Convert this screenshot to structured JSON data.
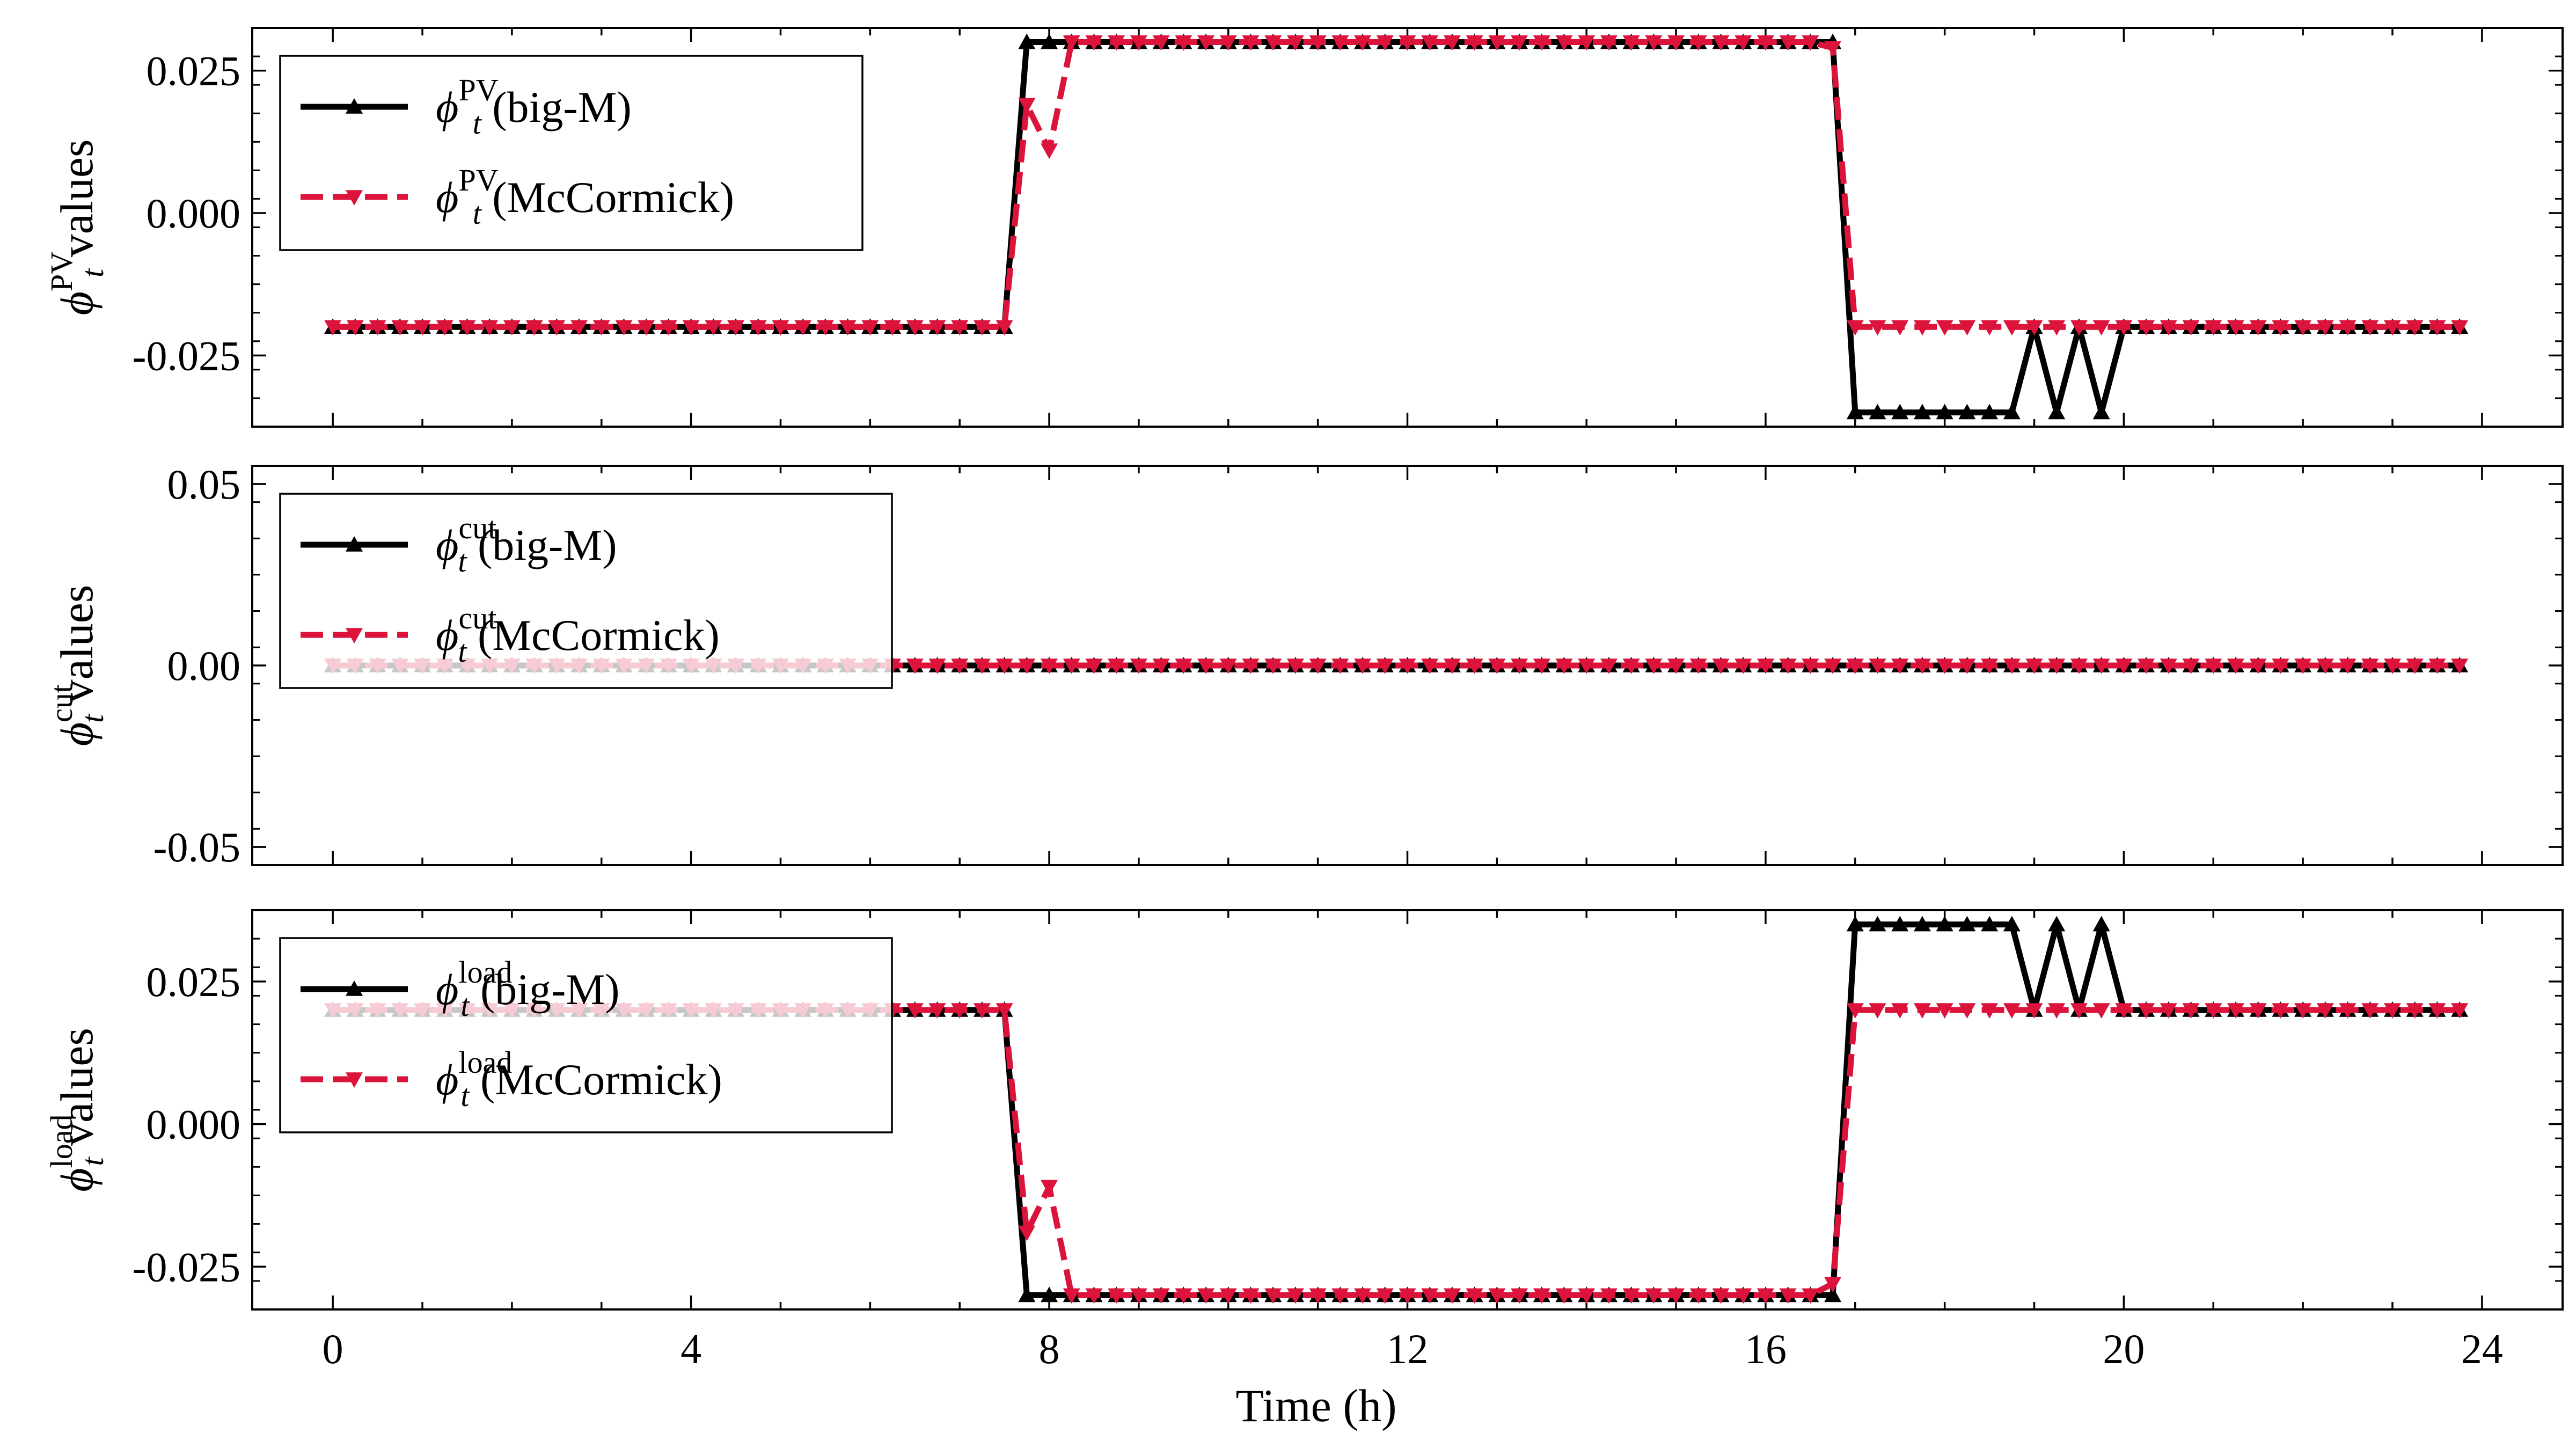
{
  "chart_data": [
    {
      "type": "line",
      "ylabel": {
        "symbol": "ϕ",
        "subscript": "t",
        "superscript": "PV",
        "suffix": "values"
      },
      "yticks": [
        0.025,
        0.0,
        -0.025
      ],
      "ytick_labels": [
        "0.025",
        "0.000",
        "-0.025"
      ],
      "ylim": [
        -0.0375,
        0.0325
      ],
      "xlim": [
        -0.9,
        24.9
      ],
      "grid": false,
      "legend_position": "top-left",
      "series": [
        {
          "name": "(big-M)",
          "label_symbol": "ϕ",
          "label_subscript": "t",
          "label_superscript": "PV",
          "color": "#000000",
          "linestyle": "solid",
          "marker": "triangle-up",
          "segments": [
            {
              "x_start": 0,
              "x_end": 7.5,
              "value": -0.02
            },
            {
              "x_start": 7.75,
              "x_end": 16.75,
              "value": 0.03
            },
            {
              "x_start": 17,
              "x_end": 18.75,
              "value": -0.035
            },
            {
              "x": [
                19,
                19.25,
                19.5,
                19.75
              ],
              "values": [
                -0.02,
                -0.035,
                -0.02,
                -0.035
              ]
            },
            {
              "x_start": 20,
              "x_end": 23.75,
              "value": -0.02
            }
          ]
        },
        {
          "name": "(McCormick)",
          "label_symbol": "ϕ",
          "label_subscript": "t",
          "label_superscript": "PV",
          "color": "#dc143c",
          "linestyle": "dashed",
          "marker": "triangle-down",
          "segments": [
            {
              "x_start": 0,
              "x_end": 7.5,
              "value": -0.02
            },
            {
              "x": [
                7.75,
                8
              ],
              "values": [
                0.019,
                0.011
              ]
            },
            {
              "x_start": 8.25,
              "x_end": 16.5,
              "value": 0.03
            },
            {
              "x": [
                16.75
              ],
              "values": [
                0.029
              ]
            },
            {
              "x_start": 17,
              "x_end": 23.75,
              "value": -0.02
            }
          ]
        }
      ]
    },
    {
      "type": "line",
      "ylabel": {
        "symbol": "ϕ",
        "subscript": "t",
        "superscript": "cut",
        "suffix": "values"
      },
      "yticks": [
        0.05,
        0.0,
        -0.05
      ],
      "ytick_labels": [
        "0.05",
        "0.00",
        "-0.05"
      ],
      "ylim": [
        -0.055,
        0.055
      ],
      "xlim": [
        -0.9,
        24.9
      ],
      "grid": false,
      "legend_position": "top-left",
      "series": [
        {
          "name": "(big-M)",
          "label_symbol": "ϕ",
          "label_subscript": "t",
          "label_superscript": "cut",
          "color": "#000000",
          "linestyle": "solid",
          "marker": "triangle-up",
          "segments": [
            {
              "x_start": 0,
              "x_end": 23.75,
              "value": 0.0
            }
          ]
        },
        {
          "name": "(McCormick)",
          "label_symbol": "ϕ",
          "label_subscript": "t",
          "label_superscript": "cut",
          "color": "#dc143c",
          "linestyle": "dashed",
          "marker": "triangle-down",
          "segments": [
            {
              "x_start": 0,
              "x_end": 23.75,
              "value": 0.0
            }
          ]
        }
      ]
    },
    {
      "type": "line",
      "ylabel": {
        "symbol": "ϕ",
        "subscript": "t",
        "superscript": "load",
        "suffix": "values"
      },
      "yticks": [
        0.025,
        0.0,
        -0.025
      ],
      "ytick_labels": [
        "0.025",
        "0.000",
        "-0.025"
      ],
      "ylim": [
        -0.0325,
        0.0375
      ],
      "xlim": [
        -0.9,
        24.9
      ],
      "xlabel": "Time (h)",
      "xticks": [
        0,
        4,
        8,
        12,
        16,
        20,
        24
      ],
      "xtick_labels": [
        "0",
        "4",
        "8",
        "12",
        "16",
        "20",
        "24"
      ],
      "grid": false,
      "legend_position": "top-left",
      "series": [
        {
          "name": "(big-M)",
          "label_symbol": "ϕ",
          "label_subscript": "t",
          "label_superscript": "load",
          "color": "#000000",
          "linestyle": "solid",
          "marker": "triangle-up",
          "segments": [
            {
              "x_start": 0,
              "x_end": 7.5,
              "value": 0.02
            },
            {
              "x_start": 7.75,
              "x_end": 16.75,
              "value": -0.03
            },
            {
              "x_start": 17,
              "x_end": 18.75,
              "value": 0.035
            },
            {
              "x": [
                19,
                19.25,
                19.5,
                19.75
              ],
              "values": [
                0.02,
                0.035,
                0.02,
                0.035
              ]
            },
            {
              "x_start": 20,
              "x_end": 23.75,
              "value": 0.02
            }
          ]
        },
        {
          "name": "(McCormick)",
          "label_symbol": "ϕ",
          "label_subscript": "t",
          "label_superscript": "load",
          "color": "#dc143c",
          "linestyle": "dashed",
          "marker": "triangle-down",
          "segments": [
            {
              "x_start": 0,
              "x_end": 7.5,
              "value": 0.02
            },
            {
              "x": [
                7.75,
                8
              ],
              "values": [
                -0.019,
                -0.011
              ]
            },
            {
              "x_start": 8.25,
              "x_end": 16.5,
              "value": -0.03
            },
            {
              "x": [
                16.75
              ],
              "values": [
                -0.028
              ]
            },
            {
              "x_start": 17,
              "x_end": 23.75,
              "value": 0.02
            }
          ]
        }
      ]
    }
  ]
}
